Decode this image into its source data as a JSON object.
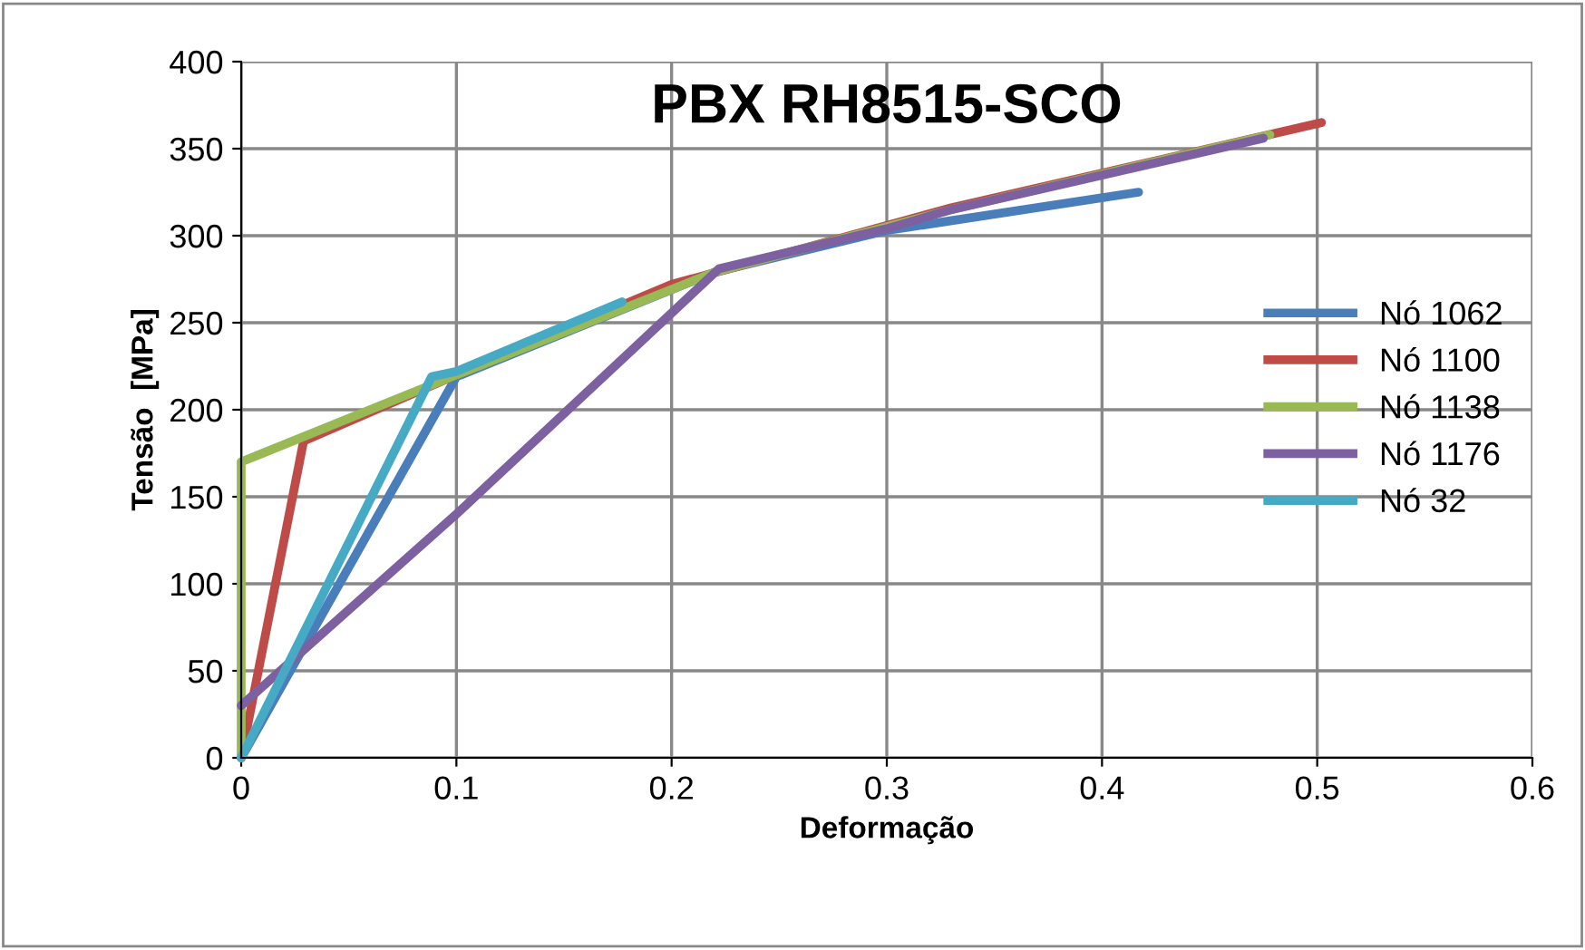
{
  "chart_data": {
    "type": "line",
    "title": "PBX RH8515-SCO",
    "xlabel": "Deformação",
    "ylabel": "Tensão  [MPa]",
    "xlim": [
      0,
      0.6
    ],
    "xticks": [
      0,
      0.1,
      0.2,
      0.3,
      0.4,
      0.5,
      0.6
    ],
    "ylim": [
      0,
      400
    ],
    "yticks": [
      0,
      50,
      100,
      150,
      200,
      250,
      300,
      350,
      400
    ],
    "grid": true,
    "legend": "right",
    "marker": "none",
    "line_style": "solid",
    "series": [
      {
        "name": "Nó 1062",
        "color": "#4a7ebb",
        "x": [
          0,
          0.1,
          0.22,
          0.3,
          0.417
        ],
        "values": [
          0,
          219,
          279,
          303,
          325
        ]
      },
      {
        "name": "Nó 1100",
        "color": "#be4b48",
        "x": [
          0,
          0.029,
          0.1,
          0.2,
          0.33,
          0.502
        ],
        "values": [
          0,
          182,
          220,
          272,
          316,
          365
        ]
      },
      {
        "name": "Nó 1138",
        "color": "#98b954",
        "x": [
          0,
          0,
          0.1,
          0.22,
          0.33,
          0.478
        ],
        "values": [
          0,
          170,
          220,
          279,
          315,
          358
        ]
      },
      {
        "name": "Nó 1176",
        "color": "#7d60a0",
        "x": [
          0,
          0.1,
          0.222,
          0.3,
          0.33,
          0.475
        ],
        "values": [
          30,
          140,
          281,
          304,
          315,
          356
        ]
      },
      {
        "name": "Nó 32",
        "color": "#46aac5",
        "x": [
          0,
          0.0885,
          0.1,
          0.177
        ],
        "values": [
          0,
          219,
          222,
          262
        ]
      }
    ]
  }
}
